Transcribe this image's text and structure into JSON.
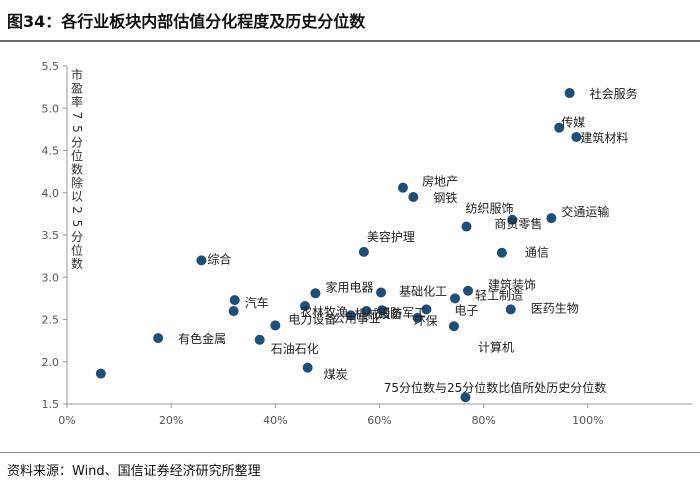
{
  "figure": {
    "title": "图34：各行业板块内部估值分化程度及历史分位数",
    "source": "资料来源：Wind、国信证券经济研究所整理"
  },
  "chart_data": {
    "type": "scatter",
    "title": "图34：各行业板块内部估值分化程度及历史分位数",
    "xlabel": "75分位数与25分位数比值所处历史分位数",
    "ylabel": "市盈率75分位数除以25分位数",
    "xlim": [
      0,
      1.2
    ],
    "ylim": [
      1.5,
      5.5
    ],
    "xticks": [
      0,
      0.2,
      0.4,
      0.6,
      0.8,
      1.0
    ],
    "xtick_labels": [
      "0%",
      "20%",
      "40%",
      "60%",
      "80%",
      "100%"
    ],
    "yticks": [
      1.5,
      2.0,
      2.5,
      3.0,
      3.5,
      4.0,
      4.5,
      5.0,
      5.5
    ],
    "ytick_labels": [
      "1.5",
      "2.0",
      "2.5",
      "3.0",
      "3.5",
      "4.0",
      "4.5",
      "5.0",
      "5.5"
    ],
    "color": "#1f4e79",
    "points": [
      {
        "label": "社会服务",
        "x": 0.965,
        "y": 5.18
      },
      {
        "label": "传媒",
        "x": 0.945,
        "y": 4.77
      },
      {
        "label": "建筑材料",
        "x": 0.978,
        "y": 4.66
      },
      {
        "label": "房地产",
        "x": 0.645,
        "y": 4.06
      },
      {
        "label": "钢铁",
        "x": 0.665,
        "y": 3.95
      },
      {
        "label": "纺织服饰",
        "x": 0.767,
        "y": 3.6
      },
      {
        "label": "交通运输",
        "x": 0.93,
        "y": 3.7
      },
      {
        "label": "商贸零售",
        "x": 0.855,
        "y": 3.68
      },
      {
        "label": "美容护理",
        "x": 0.57,
        "y": 3.3
      },
      {
        "label": "通信",
        "x": 0.835,
        "y": 3.29
      },
      {
        "label": "综合",
        "x": 0.258,
        "y": 3.2
      },
      {
        "label": "基础化工",
        "x": 0.603,
        "y": 2.82
      },
      {
        "label": "建筑装饰",
        "x": 0.77,
        "y": 2.84
      },
      {
        "label": "轻工制造",
        "x": 0.745,
        "y": 2.75
      },
      {
        "label": "汽车",
        "x": 0.322,
        "y": 2.73
      },
      {
        "label": "家用电器",
        "x": 0.477,
        "y": 2.81
      },
      {
        "label": "农林牧渔",
        "x": 0.457,
        "y": 2.66
      },
      {
        "label": "机械设备",
        "x": 0.575,
        "y": 2.6
      },
      {
        "label": "国防军工",
        "x": 0.605,
        "y": 2.61
      },
      {
        "label": "电子",
        "x": 0.69,
        "y": 2.62
      },
      {
        "label": "医药生物",
        "x": 0.852,
        "y": 2.62
      },
      {
        "label": "公用事业",
        "x": 0.545,
        "y": 2.55
      },
      {
        "label": "环保",
        "x": 0.673,
        "y": 2.52
      },
      {
        "label": "计算机",
        "x": 0.743,
        "y": 2.42
      },
      {
        "label": "电力设备",
        "x": 0.4,
        "y": 2.43
      },
      {
        "label": "有色金属",
        "x": 0.175,
        "y": 2.28
      },
      {
        "label": "石油石化",
        "x": 0.37,
        "y": 2.26
      },
      {
        "label": "煤炭",
        "x": 0.462,
        "y": 1.93
      },
      {
        "label": "",
        "x": 0.065,
        "y": 1.86
      },
      {
        "label": "",
        "x": 0.32,
        "y": 2.6
      },
      {
        "label": "",
        "x": 0.765,
        "y": 1.58
      }
    ]
  }
}
